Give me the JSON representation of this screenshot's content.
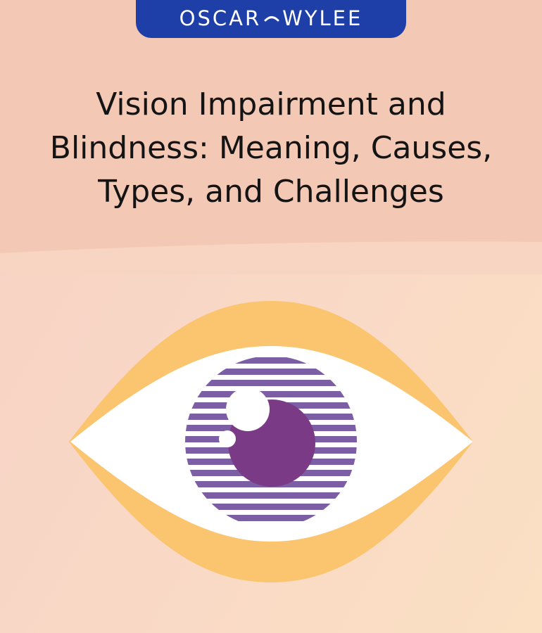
{
  "brand": {
    "name_left": "OSCAR",
    "name_right": "WYLEE",
    "pill_color": "#1f3fa8"
  },
  "article": {
    "title_line1": "Vision Impairment and",
    "title_line2": "Blindness: Meaning, Causes,",
    "title_line3": "Types, and Challenges"
  },
  "illustration": {
    "icon": "eye-icon",
    "colors": {
      "lid": "#fbc46e",
      "sclera": "#ffffff",
      "iris_stripes": "#7b5ea3",
      "pupil": "#7a3a86",
      "background_top": "#f3c8b4",
      "background_bottom": "#fbe0c3"
    }
  }
}
